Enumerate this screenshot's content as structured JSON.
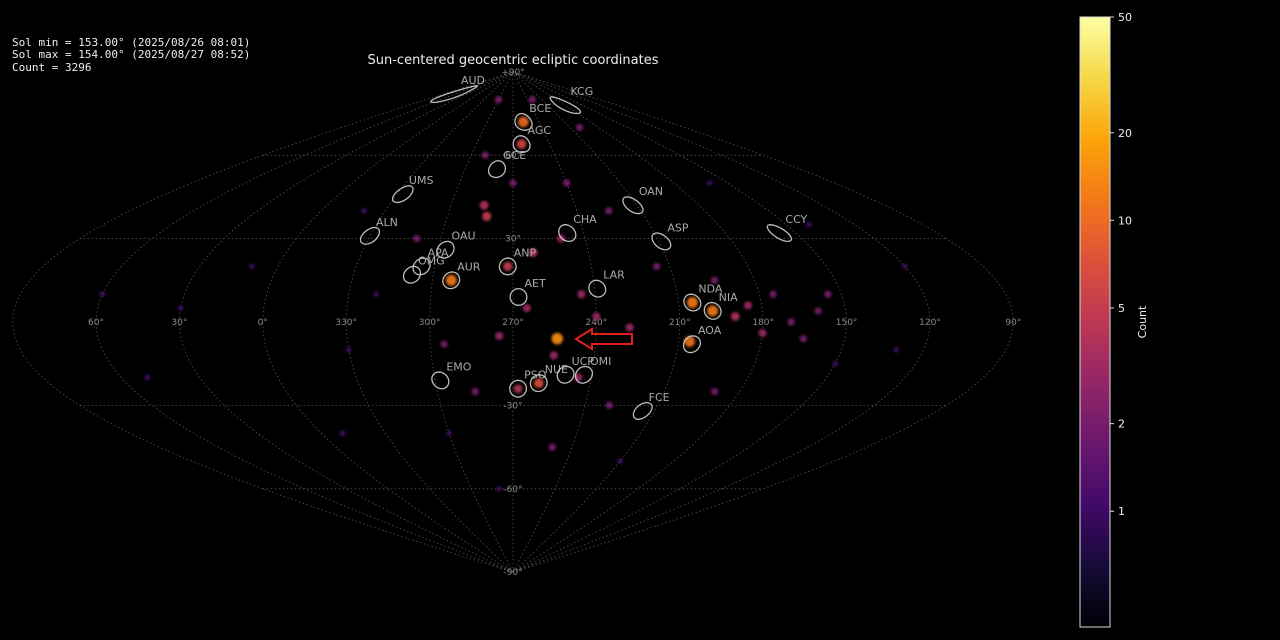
{
  "info_lines": [
    "Sol min = 153.00° (2025/08/26 08:01)",
    "Sol max = 154.00° (2025/08/27 08:52)",
    "Count = 3296"
  ],
  "chart_data": {
    "type": "scatter",
    "title": "Sun-centered geocentric ecliptic coordinates",
    "projection": "sinusoidal",
    "center_lon": 270,
    "grid": true,
    "colormap": "inferno",
    "color_scale": "log",
    "clim": [
      0.4,
      50
    ],
    "colorbar_label": "Count",
    "colorbar_ticks": [
      1,
      2,
      5,
      10,
      20,
      50
    ],
    "xticks": [
      {
        "value": 60,
        "label": "60°"
      },
      {
        "value": 30,
        "label": "30°"
      },
      {
        "value": 0,
        "label": "0°"
      },
      {
        "value": 330,
        "label": "330°"
      },
      {
        "value": 300,
        "label": "300°"
      },
      {
        "value": 270,
        "label": "270°"
      },
      {
        "value": 240,
        "label": "240°"
      },
      {
        "value": 210,
        "label": "210°"
      },
      {
        "value": 180,
        "label": "180°"
      },
      {
        "value": 150,
        "label": "150°"
      },
      {
        "value": 120,
        "label": "120°"
      },
      {
        "value": 90,
        "label": "90°"
      }
    ],
    "yticks": [
      {
        "value": 90,
        "label": "+90°"
      },
      {
        "value": 60,
        "label": "60°"
      },
      {
        "value": 30,
        "label": "30°"
      },
      {
        "value": -30,
        "label": "-30°"
      },
      {
        "value": -60,
        "label": "-60°"
      },
      {
        "value": -90,
        "label": "-90°"
      }
    ],
    "x": [
      254,
      258,
      263,
      282,
      284,
      293,
      205,
      198,
      206,
      260,
      268,
      272,
      262,
      250,
      245,
      240,
      228,
      190,
      185,
      180,
      175,
      170,
      165,
      160,
      155,
      195,
      215,
      225,
      240,
      270,
      290,
      310,
      320,
      330,
      300,
      280,
      250,
      230,
      210,
      190,
      150,
      130,
      120,
      140,
      160,
      200,
      230,
      300,
      340,
      10,
      30,
      50,
      350,
      60,
      275,
      265,
      255,
      245,
      285,
      295
    ],
    "y": [
      -6,
      72,
      64,
      38,
      42,
      15,
      7,
      4,
      -7,
      -22,
      -24,
      20,
      25,
      30,
      10,
      2,
      -2,
      2,
      6,
      -4,
      10,
      0,
      -6,
      4,
      10,
      15,
      20,
      40,
      50,
      50,
      60,
      30,
      10,
      -10,
      -40,
      -60,
      -45,
      -30,
      -50,
      -25,
      -15,
      -10,
      20,
      35,
      50,
      70,
      80,
      80,
      40,
      20,
      5,
      -20,
      -40,
      10,
      -5,
      5,
      -12,
      -20,
      -25,
      -8
    ],
    "values": [
      15,
      10,
      6,
      5,
      4,
      12,
      12,
      12,
      11,
      7,
      4,
      5,
      4,
      3,
      3,
      3,
      3,
      4,
      3,
      3,
      2,
      2,
      2,
      2,
      2,
      2,
      2,
      2,
      2,
      2,
      2,
      2,
      1,
      1,
      1,
      1,
      2,
      2,
      1,
      2,
      1,
      1,
      1,
      1,
      1,
      2,
      2,
      2,
      1,
      1,
      1,
      1,
      1,
      1,
      3,
      3,
      3,
      3,
      2,
      2
    ],
    "annotations": [
      {
        "text": "AUD",
        "x": 60,
        "y": 82
      },
      {
        "text": "KCG",
        "x": 181,
        "y": 78
      },
      {
        "text": "BCE",
        "x": 258,
        "y": 72
      },
      {
        "text": "AGC",
        "x": 263,
        "y": 64
      },
      {
        "text": "GCE",
        "x": 280,
        "y": 55
      },
      {
        "text": "UMS",
        "x": 327,
        "y": 46
      },
      {
        "text": "OAN",
        "x": 212,
        "y": 42
      },
      {
        "text": "CHA",
        "x": 247,
        "y": 32
      },
      {
        "text": "CCY",
        "x": 157,
        "y": 32
      },
      {
        "text": "ALN",
        "x": 330,
        "y": 31
      },
      {
        "text": "ASP",
        "x": 209,
        "y": 29
      },
      {
        "text": "OAU",
        "x": 297,
        "y": 26
      },
      {
        "text": "APA",
        "x": 305,
        "y": 20
      },
      {
        "text": "OMG",
        "x": 308,
        "y": 17
      },
      {
        "text": "AUR",
        "x": 293,
        "y": 15
      },
      {
        "text": "ANP",
        "x": 272,
        "y": 20
      },
      {
        "text": "LAR",
        "x": 239,
        "y": 12
      },
      {
        "text": "AET",
        "x": 268,
        "y": 9
      },
      {
        "text": "NDA",
        "x": 205,
        "y": 7
      },
      {
        "text": "NIA",
        "x": 198,
        "y": 4
      },
      {
        "text": "AOA",
        "x": 205,
        "y": -8
      },
      {
        "text": "EMO",
        "x": 298,
        "y": -21
      },
      {
        "text": "PSO",
        "x": 268,
        "y": -24
      },
      {
        "text": "NUE",
        "x": 260,
        "y": -22
      },
      {
        "text": "UCP",
        "x": 250,
        "y": -19
      },
      {
        "text": "OMI",
        "x": 243,
        "y": -19
      },
      {
        "text": "FCE",
        "x": 215,
        "y": -32
      }
    ]
  }
}
